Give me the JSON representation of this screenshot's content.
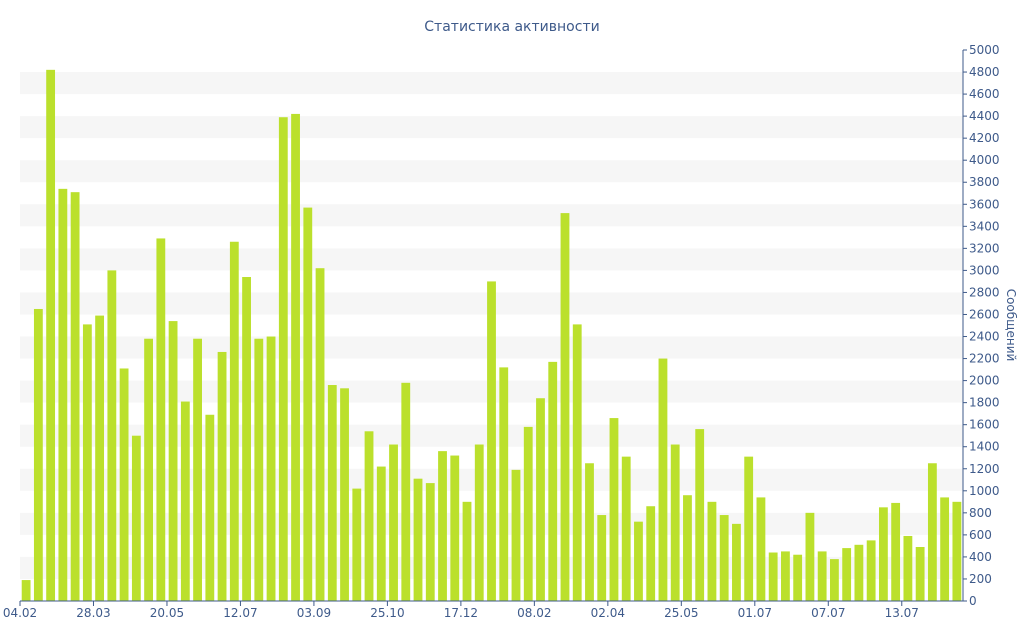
{
  "chart_data": {
    "type": "bar",
    "title": "Статистика активности",
    "xlabel": "",
    "ylabel": "Сообщений",
    "ylim": [
      0,
      5000
    ],
    "y_ticks": [
      0,
      200,
      400,
      600,
      800,
      1000,
      1200,
      1400,
      1600,
      1800,
      2000,
      2200,
      2400,
      2600,
      2800,
      3000,
      3200,
      3400,
      3600,
      3800,
      4000,
      4200,
      4400,
      4600,
      4800,
      5000
    ],
    "y_axis_position": "right",
    "grid": "horizontal alternating bands",
    "bar_color": "#bbe02c",
    "band_color": "#f6f6f6",
    "text_color": "#3e5a8a",
    "x_tick_labels": [
      {
        "label": "04.02",
        "index": 0
      },
      {
        "label": "28.03",
        "index": 6
      },
      {
        "label": "20.05",
        "index": 12
      },
      {
        "label": "12.07",
        "index": 18
      },
      {
        "label": "03.09",
        "index": 24
      },
      {
        "label": "25.10",
        "index": 30
      },
      {
        "label": "17.12",
        "index": 36
      },
      {
        "label": "08.02",
        "index": 42
      },
      {
        "label": "02.04",
        "index": 48
      },
      {
        "label": "25.05",
        "index": 54
      },
      {
        "label": "01.07",
        "index": 60
      },
      {
        "label": "07.07",
        "index": 66
      },
      {
        "label": "13.07",
        "index": 72
      }
    ],
    "values": [
      190,
      2650,
      4820,
      3740,
      3710,
      2510,
      2590,
      3000,
      2110,
      1500,
      2380,
      3290,
      2540,
      1810,
      2380,
      1690,
      2260,
      3260,
      2940,
      2380,
      2400,
      4390,
      4420,
      3570,
      3020,
      1960,
      1930,
      1020,
      1540,
      1220,
      1420,
      1980,
      1110,
      1070,
      1360,
      1320,
      900,
      1420,
      2900,
      2120,
      1190,
      1580,
      1840,
      2170,
      3520,
      2510,
      1250,
      780,
      1660,
      1310,
      720,
      860,
      2200,
      1420,
      960,
      1560,
      900,
      780,
      700,
      1310,
      940,
      440,
      450,
      420,
      800,
      450,
      380,
      480,
      510,
      550,
      850,
      890,
      590,
      490,
      1250,
      940,
      900
    ]
  }
}
